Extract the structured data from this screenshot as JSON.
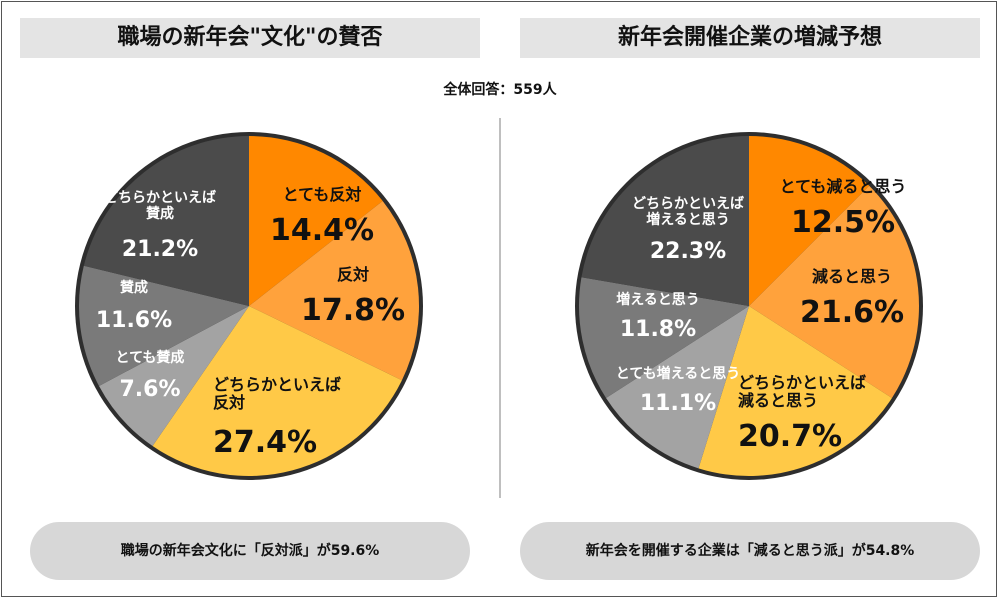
{
  "total_label": "全体回答：559人",
  "chart_data": [
    {
      "type": "pie",
      "title": "職場の新年会\"文化\"の賛否",
      "summary": "職場の新年会文化に「反対派」が59.6%",
      "slices": [
        {
          "label": "とても反対",
          "value": 14.4,
          "value_text": "14.4%",
          "color": "#ff8800",
          "text_color": "#111111"
        },
        {
          "label": "反対",
          "value": 17.8,
          "value_text": "17.8%",
          "color": "#ffa23c",
          "text_color": "#111111"
        },
        {
          "label": "どちらかといえば反対",
          "value": 27.4,
          "value_text": "27.4%",
          "color": "#ffc947",
          "text_color": "#111111"
        },
        {
          "label": "とても賛成",
          "value": 7.6,
          "value_text": "7.6%",
          "color": "#a3a3a3",
          "text_color": "#ffffff"
        },
        {
          "label": "賛成",
          "value": 11.6,
          "value_text": "11.6%",
          "color": "#7a7a7a",
          "text_color": "#ffffff"
        },
        {
          "label": "どちらかといえば賛成",
          "value": 21.2,
          "value_text": "21.2%",
          "color": "#4b4b4b",
          "text_color": "#ffffff"
        }
      ]
    },
    {
      "type": "pie",
      "title": "新年会開催企業の増減予想",
      "summary": "新年会を開催する企業は「減ると思う派」が54.8%",
      "slices": [
        {
          "label": "とても減ると思う",
          "value": 12.5,
          "value_text": "12.5%",
          "color": "#ff8800",
          "text_color": "#111111"
        },
        {
          "label": "減ると思う",
          "value": 21.6,
          "value_text": "21.6%",
          "color": "#ffa23c",
          "text_color": "#111111"
        },
        {
          "label": "どちらかといえば減ると思う",
          "value": 20.7,
          "value_text": "20.7%",
          "color": "#ffc947",
          "text_color": "#111111"
        },
        {
          "label": "とても増えると思う",
          "value": 11.1,
          "value_text": "11.1%",
          "color": "#a3a3a3",
          "text_color": "#ffffff"
        },
        {
          "label": "増えると思う",
          "value": 11.8,
          "value_text": "11.8%",
          "color": "#7a7a7a",
          "text_color": "#ffffff"
        },
        {
          "label": "どちらかといえば増えると思う",
          "value": 22.3,
          "value_text": "22.3%",
          "color": "#4b4b4b",
          "text_color": "#ffffff"
        }
      ]
    }
  ]
}
